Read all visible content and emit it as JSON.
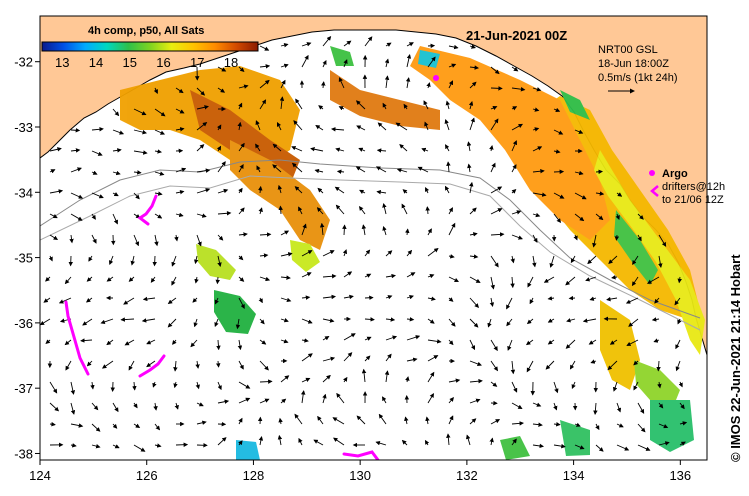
{
  "map": {
    "title": "21-Jun-2021 00Z",
    "colorbar": {
      "title": "4h comp, p50, All Sats",
      "tick_labels": [
        "13",
        "14",
        "15",
        "16",
        "17",
        "18"
      ],
      "range_degC": [
        12.4,
        18.8
      ],
      "colors": [
        "#0a1a8c",
        "#0050e6",
        "#00aaff",
        "#00d8c0",
        "#2ec04a",
        "#7ed321",
        "#e8ee10",
        "#ffc400",
        "#ff8c00",
        "#d24a00",
        "#8a1a00"
      ]
    },
    "current_info": {
      "line1": "NRT00 GSL",
      "line2": "18-Jun 18:00Z",
      "line3": "0.5m/s (1kt 24h)"
    },
    "legend": {
      "argo_label": "Argo",
      "drifters_line1": "drifters@12h",
      "drifters_line2": "to 21/06 12Z",
      "argo_color": "#ff00ff",
      "drifter_color": "#ff00ff"
    },
    "credit": "© IMOS 22-Jun-2021 21:14 Hobart",
    "x_ticks": [
      "124",
      "126",
      "128",
      "130",
      "132",
      "134",
      "136"
    ],
    "y_ticks": [
      "-32",
      "-33",
      "-34",
      "-35",
      "-36",
      "-37",
      "-38"
    ],
    "x_range_deg": [
      124,
      136.5
    ],
    "y_range_deg": [
      -38.1,
      -31.3
    ],
    "land_color": "#ffc896",
    "ocean_color": "#ffffff"
  }
}
